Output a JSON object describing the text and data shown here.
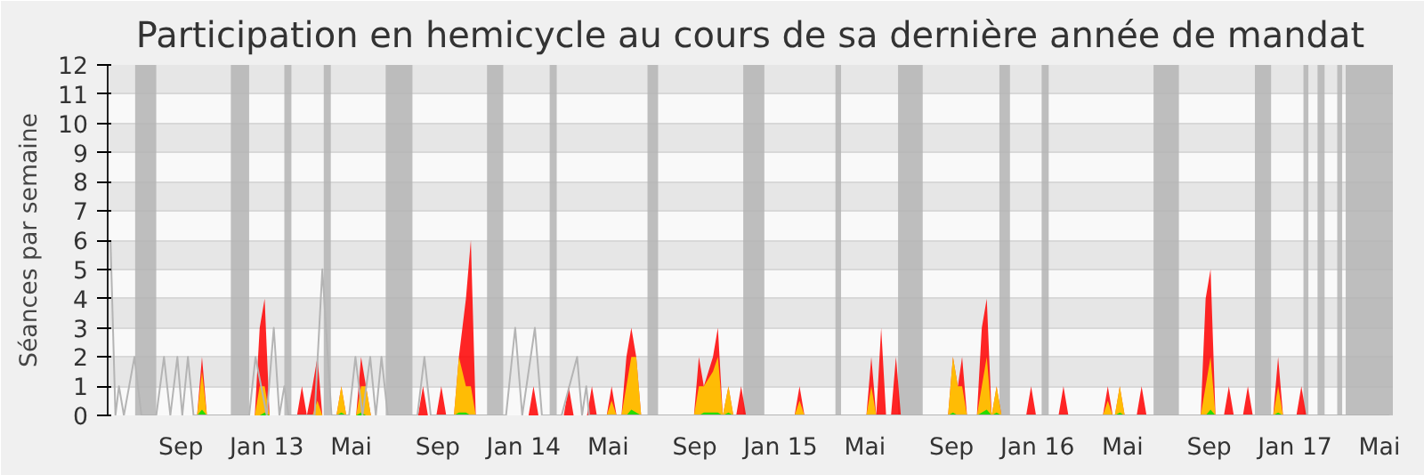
{
  "chart_data": {
    "type": "area",
    "title": "Participation en hemicycle au cours de sa dernière année de mandat",
    "ylabel": "Séances par semaine",
    "xlim": [
      "2012-05-20",
      "2017-05-20"
    ],
    "ylim": [
      0,
      12
    ],
    "xticks": [
      {
        "value": "2012-09-01",
        "label": "Sep"
      },
      {
        "value": "2013-01-01",
        "label": "Jan 13"
      },
      {
        "value": "2013-05-01",
        "label": "Mai"
      },
      {
        "value": "2013-09-01",
        "label": "Sep"
      },
      {
        "value": "2014-01-01",
        "label": "Jan 14"
      },
      {
        "value": "2014-05-01",
        "label": "Mai"
      },
      {
        "value": "2014-09-01",
        "label": "Sep"
      },
      {
        "value": "2015-01-01",
        "label": "Jan 15"
      },
      {
        "value": "2015-05-01",
        "label": "Mai"
      },
      {
        "value": "2015-09-01",
        "label": "Sep"
      },
      {
        "value": "2016-01-01",
        "label": "Jan 16"
      },
      {
        "value": "2016-05-01",
        "label": "Mai"
      },
      {
        "value": "2016-09-01",
        "label": "Sep"
      },
      {
        "value": "2017-01-01",
        "label": "Jan 17"
      },
      {
        "value": "2017-05-01",
        "label": "Mai"
      }
    ],
    "yticks": [
      0,
      1,
      2,
      3,
      4,
      5,
      6,
      7,
      8,
      9,
      10,
      11,
      12
    ],
    "grid": "y",
    "bands": [
      {
        "axis": "x",
        "from": "2012-06-28",
        "to": "2012-07-28",
        "color": "#b4b4b4"
      },
      {
        "axis": "x",
        "from": "2012-11-11",
        "to": "2012-12-07",
        "color": "#b4b4b4"
      },
      {
        "axis": "x",
        "from": "2013-01-26",
        "to": "2013-02-05",
        "color": "#b4b4b4"
      },
      {
        "axis": "x",
        "from": "2013-03-23",
        "to": "2013-04-02",
        "color": "#b4b4b4"
      },
      {
        "axis": "x",
        "from": "2013-06-19",
        "to": "2013-07-27",
        "color": "#b4b4b4"
      },
      {
        "axis": "x",
        "from": "2013-11-10",
        "to": "2013-12-03",
        "color": "#b4b4b4"
      },
      {
        "axis": "x",
        "from": "2014-02-07",
        "to": "2014-02-17",
        "color": "#b4b4b4"
      },
      {
        "axis": "x",
        "from": "2014-06-26",
        "to": "2014-07-11",
        "color": "#b4b4b4"
      },
      {
        "axis": "x",
        "from": "2014-11-09",
        "to": "2014-12-09",
        "color": "#b4b4b4"
      },
      {
        "axis": "x",
        "from": "2015-03-20",
        "to": "2015-03-28",
        "color": "#b4b4b4"
      },
      {
        "axis": "x",
        "from": "2015-06-17",
        "to": "2015-07-22",
        "color": "#b4b4b4"
      },
      {
        "axis": "x",
        "from": "2015-11-08",
        "to": "2015-11-23",
        "color": "#b4b4b4"
      },
      {
        "axis": "x",
        "from": "2016-01-07",
        "to": "2016-01-17",
        "color": "#b4b4b4"
      },
      {
        "axis": "x",
        "from": "2016-06-14",
        "to": "2016-07-20",
        "color": "#b4b4b4"
      },
      {
        "axis": "x",
        "from": "2016-11-05",
        "to": "2016-11-28",
        "color": "#b4b4b4"
      },
      {
        "axis": "x",
        "from": "2017-01-13",
        "to": "2017-01-20",
        "color": "#b4b4b4"
      },
      {
        "axis": "x",
        "from": "2017-02-02",
        "to": "2017-02-12",
        "color": "#b4b4b4"
      },
      {
        "axis": "x",
        "from": "2017-03-02",
        "to": "2017-03-09",
        "color": "#b4b4b4"
      },
      {
        "axis": "x",
        "from": "2017-03-14",
        "to": "2017-05-20",
        "color": "#b4b4b4"
      }
    ],
    "x": [
      "2012-06-01",
      "2012-09-24",
      "2012-10-01",
      "2012-10-08",
      "2012-12-15",
      "2012-12-22",
      "2012-12-29",
      "2013-01-05",
      "2013-02-13",
      "2013-02-20",
      "2013-02-27",
      "2013-03-07",
      "2013-03-14",
      "2013-03-21",
      "2013-04-10",
      "2013-04-17",
      "2013-04-24",
      "2013-05-08",
      "2013-05-15",
      "2013-05-22",
      "2013-05-29",
      "2013-08-04",
      "2013-08-11",
      "2013-08-18",
      "2013-08-30",
      "2013-09-06",
      "2013-09-13",
      "2013-09-24",
      "2013-10-01",
      "2013-10-11",
      "2013-10-18",
      "2013-10-25",
      "2014-01-08",
      "2014-01-15",
      "2014-01-22",
      "2014-02-27",
      "2014-03-06",
      "2014-03-13",
      "2014-04-01",
      "2014-04-08",
      "2014-04-15",
      "2014-04-29",
      "2014-05-06",
      "2014-05-13",
      "2014-05-20",
      "2014-05-27",
      "2014-06-03",
      "2014-06-10",
      "2014-06-17",
      "2014-08-31",
      "2014-09-07",
      "2014-09-14",
      "2014-09-27",
      "2014-10-04",
      "2014-10-11",
      "2014-10-19",
      "2014-10-26",
      "2014-10-30",
      "2014-11-06",
      "2014-11-13",
      "2015-01-21",
      "2015-01-28",
      "2015-02-04",
      "2015-05-03",
      "2015-05-10",
      "2015-05-17",
      "2015-05-24",
      "2015-05-31",
      "2015-06-07",
      "2015-06-14",
      "2015-06-21",
      "2015-08-27",
      "2015-09-03",
      "2015-09-10",
      "2015-09-16",
      "2015-09-23",
      "2015-10-07",
      "2015-10-14",
      "2015-10-21",
      "2015-10-28",
      "2015-11-04",
      "2015-11-11",
      "2015-12-16",
      "2015-12-23",
      "2015-12-30",
      "2016-01-31",
      "2016-02-07",
      "2016-02-14",
      "2016-04-03",
      "2016-04-10",
      "2016-04-17",
      "2016-04-20",
      "2016-04-27",
      "2016-05-04",
      "2016-05-21",
      "2016-05-28",
      "2016-06-04",
      "2016-08-20",
      "2016-08-27",
      "2016-09-03",
      "2016-09-10",
      "2016-09-22",
      "2016-09-29",
      "2016-10-06",
      "2016-10-19",
      "2016-10-26",
      "2016-11-02",
      "2016-12-01",
      "2016-12-08",
      "2016-12-15",
      "2017-01-03",
      "2017-01-10",
      "2017-01-17",
      "2017-05-15"
    ],
    "series": [
      {
        "color": "#ff0000",
        "values": [
          0,
          0,
          2,
          0,
          0,
          3,
          4,
          0,
          0,
          1,
          0,
          1,
          2,
          0,
          0,
          1,
          0,
          0,
          2,
          1,
          0,
          0,
          1,
          0,
          0,
          1,
          0,
          0,
          2,
          4,
          6,
          0,
          0,
          1,
          0,
          0,
          1,
          0,
          0,
          1,
          0,
          0,
          1,
          0,
          0,
          2,
          3,
          2,
          0,
          0,
          2,
          1,
          2,
          3,
          0,
          1,
          0,
          0,
          1,
          0,
          0,
          1,
          0,
          0,
          2,
          0,
          3,
          0,
          0,
          2,
          0,
          0,
          2,
          1,
          2,
          0,
          0,
          3,
          4,
          0,
          1,
          0,
          0,
          1,
          0,
          0,
          1,
          0,
          0,
          1,
          0,
          0,
          1,
          0,
          0,
          1,
          0,
          0,
          4,
          5,
          0,
          0,
          1,
          0,
          0,
          1,
          0,
          0,
          2,
          0,
          0,
          1,
          0,
          0
        ]
      },
      {
        "color": "#ffd700",
        "values": [
          0,
          0,
          1.5,
          0,
          0,
          1,
          1,
          0,
          0,
          0,
          0,
          0,
          0.5,
          0,
          0,
          1,
          0,
          0,
          1,
          1,
          0,
          0,
          0,
          0,
          0,
          0,
          0,
          0,
          2,
          1,
          1,
          0,
          0,
          0,
          0,
          0,
          0,
          0,
          0,
          0,
          0,
          0,
          0.5,
          0,
          0,
          1,
          2,
          2,
          0,
          0,
          1,
          1,
          1.5,
          2,
          0,
          1,
          0,
          0,
          0,
          0,
          0,
          0.5,
          0,
          0,
          1,
          0,
          0,
          0,
          0,
          0,
          0,
          0,
          2,
          1,
          1,
          0,
          0,
          1,
          2,
          0,
          1,
          0,
          0,
          0,
          0,
          0,
          0,
          0,
          0,
          0.5,
          0,
          0,
          1,
          0,
          0,
          0,
          0,
          0,
          1,
          2,
          0,
          0,
          0,
          0,
          0,
          0,
          0,
          0,
          1,
          0,
          0,
          0,
          0,
          0
        ]
      },
      {
        "color": "#00e000",
        "values": [
          0,
          0,
          0.2,
          0,
          0,
          0,
          0.1,
          0,
          0,
          0,
          0,
          0,
          0,
          0,
          0,
          0.1,
          0,
          0,
          0.1,
          0,
          0,
          0,
          0,
          0,
          0,
          0,
          0,
          0,
          0.1,
          0.1,
          0,
          0,
          0,
          0,
          0,
          0,
          0,
          0,
          0,
          0,
          0,
          0,
          0,
          0,
          0,
          0,
          0.2,
          0.1,
          0,
          0,
          0,
          0.1,
          0.1,
          0.1,
          0,
          0.1,
          0,
          0,
          0,
          0,
          0,
          0,
          0,
          0,
          0,
          0,
          0,
          0,
          0,
          0,
          0,
          0,
          0.1,
          0,
          0,
          0,
          0,
          0.1,
          0.2,
          0,
          0.1,
          0,
          0,
          0,
          0,
          0,
          0,
          0,
          0,
          0,
          0,
          0,
          0.1,
          0,
          0,
          0,
          0,
          0,
          0,
          0.2,
          0,
          0,
          0,
          0,
          0,
          0,
          0,
          0,
          0.1,
          0,
          0,
          0,
          0,
          0
        ]
      },
      {
        "type": "line",
        "color": "#b4b4b4",
        "x": [
          "2012-05-24",
          "2012-05-31",
          "2012-06-05",
          "2012-06-12",
          "2012-06-27",
          "2012-07-07",
          "2012-07-28",
          "2012-08-08",
          "2012-08-17",
          "2012-08-27",
          "2012-09-03",
          "2012-09-11",
          "2012-09-19",
          "2012-12-07",
          "2012-12-16",
          "2013-01-01",
          "2013-01-11",
          "2013-01-19",
          "2013-01-26",
          "2013-02-01",
          "2013-03-10",
          "2013-03-21",
          "2013-04-03",
          "2013-04-28",
          "2013-05-07",
          "2013-05-17",
          "2013-05-28",
          "2013-06-05",
          "2013-06-13",
          "2013-06-22",
          "2013-08-03",
          "2013-08-13",
          "2013-08-22",
          "2013-12-07",
          "2013-12-20",
          "2013-12-30",
          "2014-01-17",
          "2014-01-27",
          "2014-02-24",
          "2014-03-18",
          "2014-03-25",
          "2014-03-31",
          "2014-04-04",
          "2017-05-15"
        ],
        "values": [
          6,
          0,
          1,
          0,
          2,
          0,
          0,
          2,
          0,
          2,
          0,
          2,
          0,
          0,
          2,
          0,
          3,
          0,
          1,
          0,
          0,
          5,
          0,
          0,
          2,
          0,
          2,
          0,
          2,
          0,
          0,
          2,
          0,
          0,
          3,
          0,
          3,
          0,
          0,
          2,
          0,
          1,
          0,
          0
        ]
      }
    ]
  }
}
